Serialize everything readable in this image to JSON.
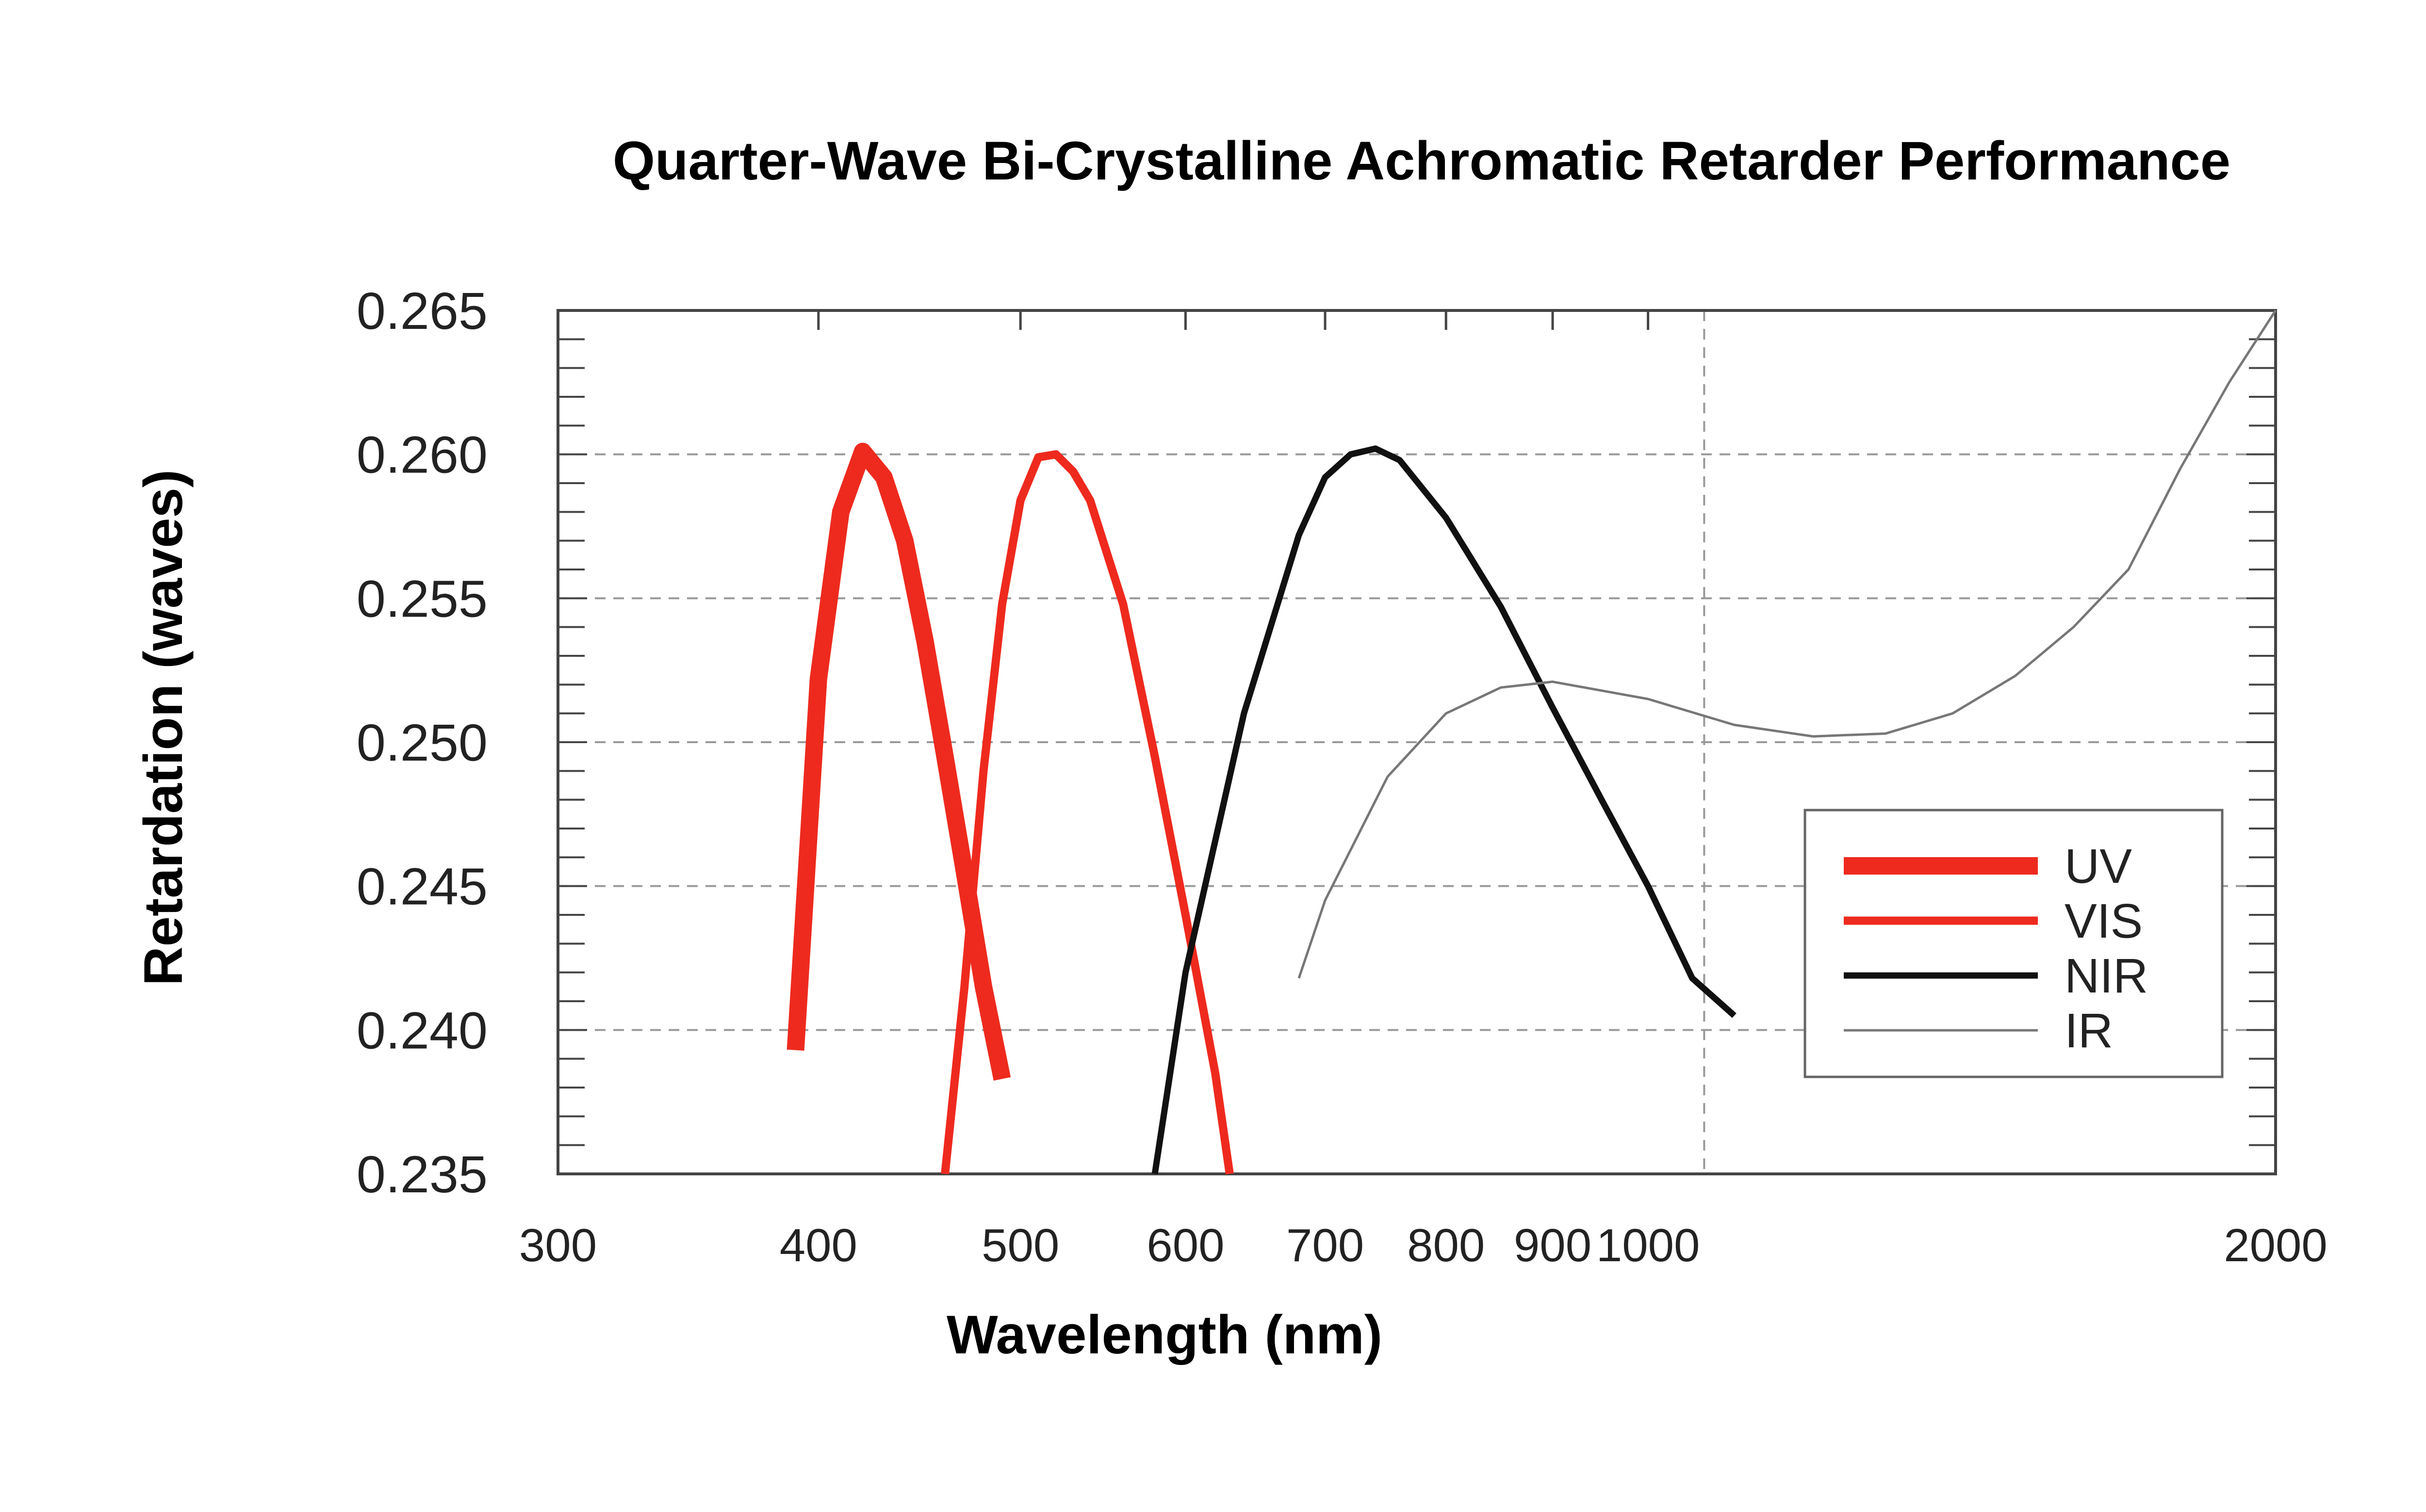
{
  "chart_data": {
    "type": "line",
    "title": "Quarter-Wave Bi-Crystalline Achromatic Retarder Performance",
    "xlabel": "Wavelength (nm)",
    "ylabel": "Retardation (waves)",
    "xscale": "log",
    "xlim": [
      300,
      2000
    ],
    "ylim": [
      0.235,
      0.265
    ],
    "xticks": [
      300,
      400,
      500,
      600,
      700,
      800,
      900,
      1000,
      2000
    ],
    "xtick_labels": [
      "300",
      "400",
      "500",
      "600",
      "700",
      "800",
      "900",
      "1000",
      "2000"
    ],
    "yticks": [
      0.235,
      0.24,
      0.245,
      0.25,
      0.255,
      0.26,
      0.265
    ],
    "ytick_labels": [
      "0.235",
      "0.240",
      "0.245",
      "0.250",
      "0.255",
      "0.260",
      "0.265"
    ],
    "grid": "dashed horizontal at 0.240–0.260; dashed vertical at 1064",
    "reference_line_x": 1064,
    "legend": {
      "position": "lower-right",
      "entries": [
        "UV",
        "VIS",
        "NIR",
        "IR"
      ]
    },
    "colors": {
      "UV": "#ee2a1e",
      "VIS": "#ee2a1e",
      "NIR": "#111111",
      "IR": "#777777",
      "grid": "#999999",
      "frame": "#444444"
    },
    "series": [
      {
        "name": "UV",
        "line": "thick red",
        "x": [
          390,
          400,
          410,
          420,
          430,
          440,
          450,
          460,
          470,
          480,
          490
        ],
        "y": [
          0.2393,
          0.2522,
          0.258,
          0.2601,
          0.2592,
          0.257,
          0.2535,
          0.2495,
          0.2455,
          0.2415,
          0.2383
        ]
      },
      {
        "name": "VIS",
        "line": "red",
        "x": [
          460,
          470,
          480,
          490,
          500,
          510,
          520,
          530,
          540,
          560,
          580,
          600,
          620,
          630
        ],
        "y": [
          0.235,
          0.2415,
          0.249,
          0.2548,
          0.2584,
          0.2599,
          0.26,
          0.2594,
          0.2584,
          0.2548,
          0.2495,
          0.244,
          0.2385,
          0.235
        ]
      },
      {
        "name": "NIR",
        "line": "black",
        "x": [
          580,
          600,
          640,
          680,
          700,
          720,
          740,
          760,
          800,
          850,
          900,
          950,
          1000,
          1050,
          1100
        ],
        "y": [
          0.235,
          0.242,
          0.251,
          0.2572,
          0.2592,
          0.26,
          0.2602,
          0.2598,
          0.2578,
          0.2547,
          0.2512,
          0.248,
          0.245,
          0.2418,
          0.2405
        ]
      },
      {
        "name": "IR",
        "line": "gray thin",
        "x": [
          680,
          700,
          750,
          800,
          850,
          900,
          1000,
          1100,
          1200,
          1300,
          1400,
          1500,
          1600,
          1700,
          1800,
          1900,
          2000
        ],
        "y": [
          0.2418,
          0.2445,
          0.2488,
          0.251,
          0.2519,
          0.2521,
          0.2515,
          0.2506,
          0.2502,
          0.2503,
          0.251,
          0.2523,
          0.254,
          0.256,
          0.2595,
          0.2625,
          0.265
        ]
      }
    ]
  }
}
